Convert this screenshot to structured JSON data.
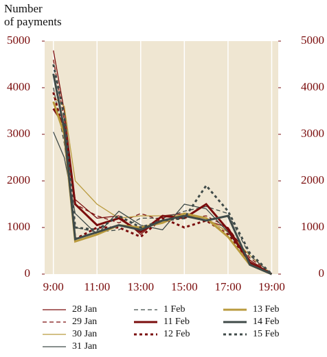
{
  "chart_data": {
    "type": "line",
    "y_label": [
      "Number",
      "of payments"
    ],
    "x": [
      9,
      9.5,
      10,
      11,
      12,
      13,
      14,
      15,
      16,
      17,
      18,
      19
    ],
    "xlim": [
      8.6,
      19.3
    ],
    "xticks": [
      {
        "value": 9,
        "label": "9:00"
      },
      {
        "value": 11,
        "label": "11:00"
      },
      {
        "value": 13,
        "label": "13:00"
      },
      {
        "value": 15,
        "label": "15:00"
      },
      {
        "value": 17,
        "label": "17:00"
      },
      {
        "value": 19,
        "label": "19:00"
      }
    ],
    "ylim": [
      0,
      5000
    ],
    "yticks": [
      0,
      1000,
      2000,
      3000,
      4000,
      5000
    ],
    "y2lim": [
      0,
      5000
    ],
    "y2ticks": [
      0,
      1000,
      2000,
      3000,
      4000,
      5000
    ],
    "grid": true,
    "series": [
      {
        "name": "28 Jan",
        "color": "#7a0c0c",
        "dash": "solid",
        "width": 1.3,
        "values": [
          4800,
          3500,
          1600,
          1200,
          1250,
          850,
          1250,
          1300,
          1150,
          1000,
          300,
          0
        ]
      },
      {
        "name": "29 Jan",
        "color": "#7a0c0c",
        "dash": "dashed",
        "width": 1.3,
        "values": [
          4600,
          3300,
          1500,
          1250,
          1100,
          1300,
          1150,
          1200,
          1250,
          1000,
          350,
          0
        ]
      },
      {
        "name": "30 Jan",
        "color": "#b99a3d",
        "dash": "solid",
        "width": 1.3,
        "values": [
          3800,
          3600,
          2000,
          1500,
          1200,
          1250,
          1250,
          1250,
          1200,
          900,
          400,
          0
        ]
      },
      {
        "name": "31 Jan",
        "color": "#3f4a48",
        "dash": "solid",
        "width": 1.3,
        "values": [
          3050,
          2500,
          1300,
          850,
          1350,
          1050,
          950,
          1500,
          1400,
          900,
          250,
          0
        ]
      },
      {
        "name": "1 Feb",
        "color": "#3f4a48",
        "dash": "dashed",
        "width": 1.3,
        "values": [
          4000,
          2800,
          1000,
          900,
          950,
          1200,
          1200,
          1350,
          1450,
          1300,
          400,
          0
        ]
      },
      {
        "name": "11 Feb",
        "color": "#7a0c0c",
        "dash": "solid",
        "width": 3,
        "values": [
          3550,
          3200,
          1500,
          1050,
          1200,
          900,
          1250,
          1200,
          1500,
          950,
          250,
          0
        ]
      },
      {
        "name": "12 Feb",
        "color": "#7a0c0c",
        "dash": "dotted",
        "width": 3,
        "values": [
          3900,
          3000,
          750,
          1000,
          1000,
          800,
          1200,
          1000,
          1150,
          850,
          250,
          0
        ]
      },
      {
        "name": "13 Feb",
        "color": "#b99a3d",
        "dash": "solid",
        "width": 3,
        "values": [
          3700,
          3000,
          700,
          850,
          1050,
          1000,
          1100,
          1300,
          1200,
          800,
          200,
          0
        ]
      },
      {
        "name": "14 Feb",
        "color": "#3f4a48",
        "dash": "solid",
        "width": 3,
        "values": [
          4300,
          3100,
          750,
          900,
          1050,
          950,
          1150,
          1250,
          1150,
          1250,
          200,
          0
        ]
      },
      {
        "name": "15 Feb",
        "color": "#3f4a48",
        "dash": "dotted",
        "width": 3,
        "values": [
          4500,
          3400,
          1000,
          950,
          1250,
          1000,
          1150,
          1200,
          1900,
          1350,
          450,
          0
        ]
      }
    ]
  }
}
